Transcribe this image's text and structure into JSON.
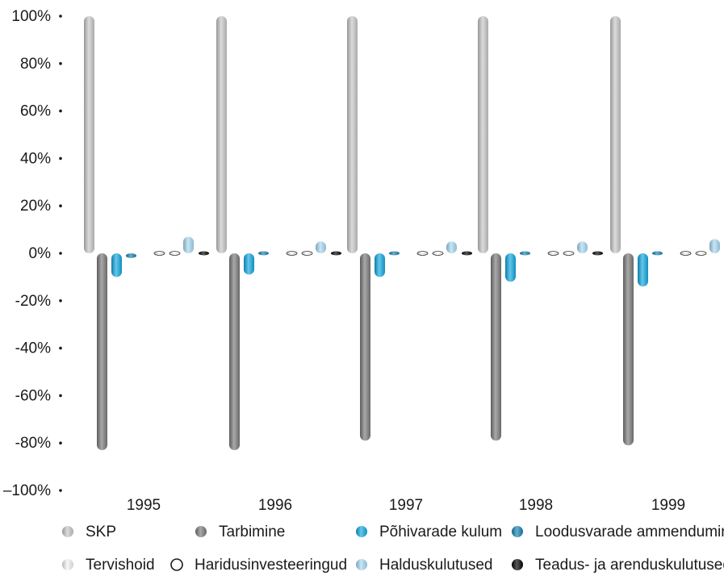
{
  "chart_data": {
    "type": "bar",
    "title": "",
    "xlabel": "",
    "ylabel": "",
    "ylim": [
      -100,
      100
    ],
    "y_ticks": [
      100,
      80,
      60,
      40,
      20,
      0,
      -20,
      -40,
      -60,
      -80,
      -100
    ],
    "y_tick_labels": [
      "100%",
      "80%",
      "60%",
      "40%",
      "20%",
      "0%",
      "-20%",
      "-40%",
      "-60%",
      "-80%",
      "–100%"
    ],
    "grid": false,
    "legend_position": "bottom",
    "categories": [
      "1995",
      "1996",
      "1997",
      "1998",
      "1999"
    ],
    "series": [
      {
        "name": "SKP",
        "color": "#c8c8c8",
        "values": [
          100,
          100,
          100,
          100,
          100
        ]
      },
      {
        "name": "Tarbimine",
        "color": "#7a7a7a",
        "values": [
          -83,
          -83,
          -79,
          -79,
          -81
        ]
      },
      {
        "name": "Põhivarade kulum",
        "color": "#12a8e0",
        "values": [
          -10,
          -9,
          -10,
          -12,
          -14
        ]
      },
      {
        "name": "Loodusvarade ammendumine",
        "color": "#1583b0",
        "values": [
          -2,
          -1.5,
          -1.5,
          -1.5,
          -1
        ]
      },
      {
        "name": "Tervishoid",
        "color": "#f4f4f4",
        "values": [
          0.5,
          0.5,
          0.5,
          0.5,
          0.5
        ]
      },
      {
        "name": "Haridusinvesteeringud",
        "color": "#ffffff",
        "values": [
          1,
          1,
          1,
          1,
          1
        ]
      },
      {
        "name": "Halduskulutused",
        "color": "#a9d8f2",
        "values": [
          7,
          5,
          5,
          5,
          6
        ]
      },
      {
        "name": "Teadus- ja arenduskulutused",
        "color": "#000000",
        "values": [
          0.5,
          0.5,
          0.5,
          0.5,
          0.5
        ]
      }
    ]
  }
}
